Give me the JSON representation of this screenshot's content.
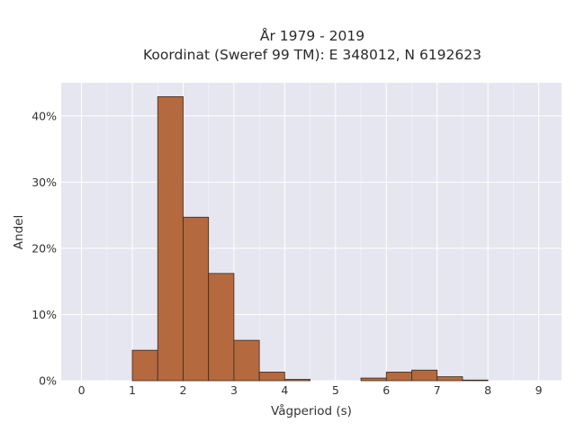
{
  "chart_data": {
    "type": "bar",
    "title_line1": "År 1979 - 2019",
    "title_line2": "Koordinat (Sweref 99 TM): E 348012, N 6192623",
    "xlabel": "Vågperiod (s)",
    "ylabel": "Andel",
    "bin_width": 0.5,
    "bin_starts": [
      1.0,
      1.5,
      2.0,
      2.5,
      3.0,
      3.5,
      4.0,
      5.5,
      6.0,
      6.5,
      7.0,
      7.5
    ],
    "values": [
      4.6,
      42.9,
      24.7,
      16.2,
      6.1,
      1.3,
      0.2,
      0.4,
      1.3,
      1.6,
      0.6,
      0.1
    ],
    "xlim": [
      -0.4,
      9.45
    ],
    "ylim": [
      0,
      45
    ],
    "x_ticks": [
      0,
      1,
      2,
      3,
      4,
      5,
      6,
      7,
      8,
      9
    ],
    "y_ticks": [
      0,
      10,
      20,
      30,
      40
    ],
    "y_tick_labels": [
      "0%",
      "10%",
      "20%",
      "30%",
      "40%"
    ],
    "grid": true,
    "bar_color": "#b5693e",
    "bar_edge_color": "#3a2a1e",
    "plot_background": "#e6e6f0"
  }
}
